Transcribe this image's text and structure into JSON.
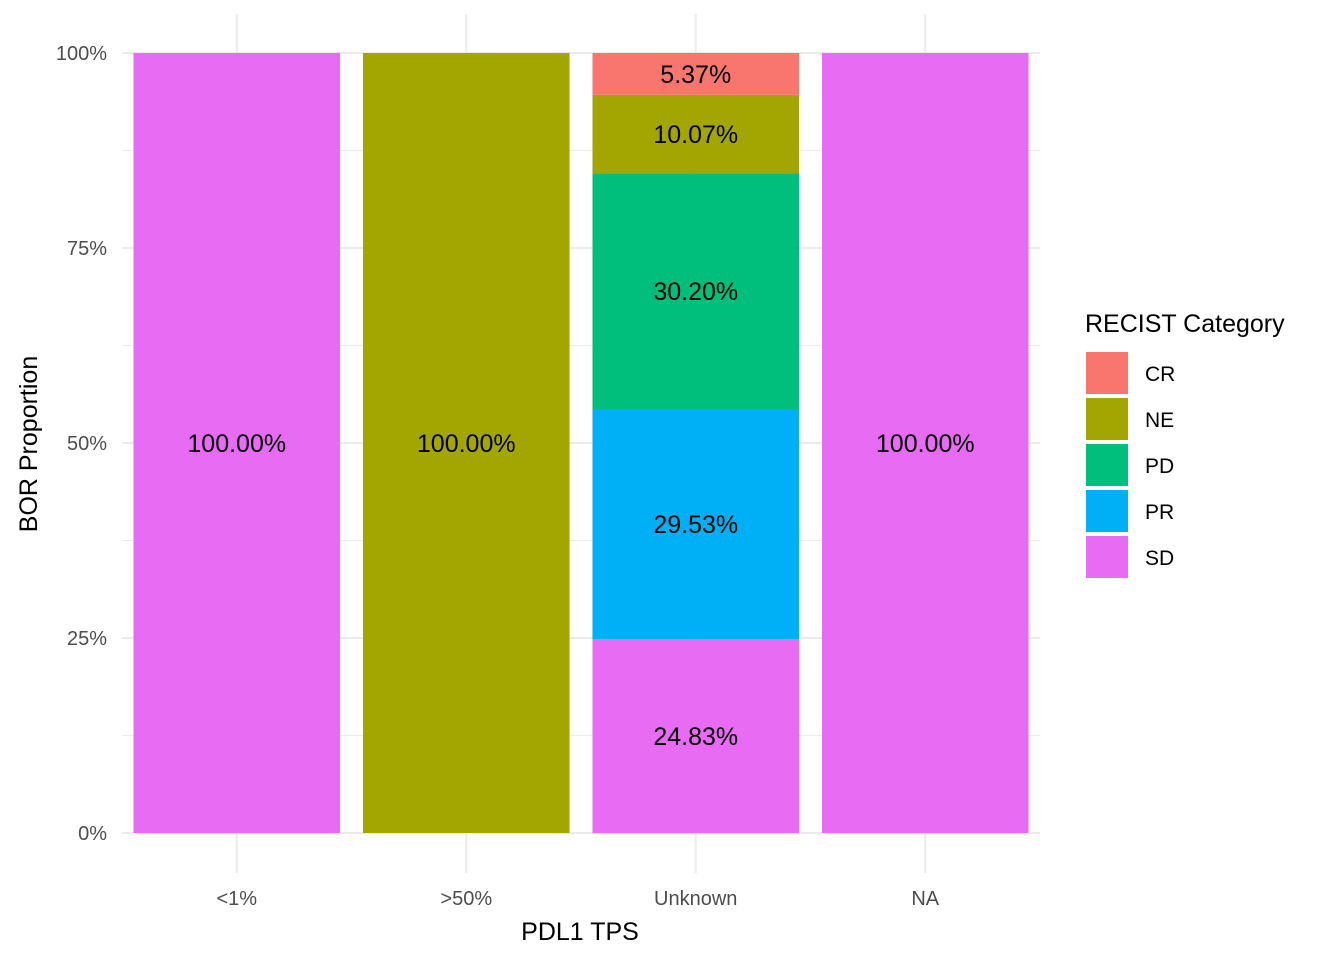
{
  "chart_data": {
    "type": "bar",
    "stacked": true,
    "xlabel": "PDL1 TPS",
    "ylabel": "BOR Proportion",
    "categories": [
      "<1%",
      ">50%",
      "Unknown",
      "NA"
    ],
    "ylim": [
      0,
      1
    ],
    "yticks": [
      {
        "value": 0,
        "label": "0%"
      },
      {
        "value": 0.25,
        "label": "25%"
      },
      {
        "value": 0.5,
        "label": "50%"
      },
      {
        "value": 0.75,
        "label": "75%"
      },
      {
        "value": 1,
        "label": "100%"
      }
    ],
    "grid": true,
    "legend": {
      "title": "RECIST Category",
      "position": "right",
      "entries": [
        {
          "name": "CR",
          "color": "#F8766D"
        },
        {
          "name": "NE",
          "color": "#A3A500"
        },
        {
          "name": "PD",
          "color": "#00BF7D"
        },
        {
          "name": "PR",
          "color": "#00B0F6"
        },
        {
          "name": "SD",
          "color": "#E76BF3"
        }
      ]
    },
    "series": [
      {
        "name": "CR",
        "color": "#F8766D",
        "values": [
          0,
          0,
          0.0537,
          0
        ],
        "labels": [
          "",
          "",
          "5.37%",
          ""
        ]
      },
      {
        "name": "NE",
        "color": "#A3A500",
        "values": [
          0,
          1,
          0.1007,
          0
        ],
        "labels": [
          "",
          "100.00%",
          "10.07%",
          ""
        ]
      },
      {
        "name": "PD",
        "color": "#00BF7D",
        "values": [
          0,
          0,
          0.302,
          0
        ],
        "labels": [
          "",
          "",
          "30.20%",
          ""
        ]
      },
      {
        "name": "PR",
        "color": "#00B0F6",
        "values": [
          0,
          0,
          0.2953,
          0
        ],
        "labels": [
          "",
          "",
          "29.53%",
          ""
        ]
      },
      {
        "name": "SD",
        "color": "#E76BF3",
        "values": [
          1,
          0,
          0.2483,
          1
        ],
        "labels": [
          "100.00%",
          "",
          "24.83%",
          "100.00%"
        ]
      }
    ]
  }
}
